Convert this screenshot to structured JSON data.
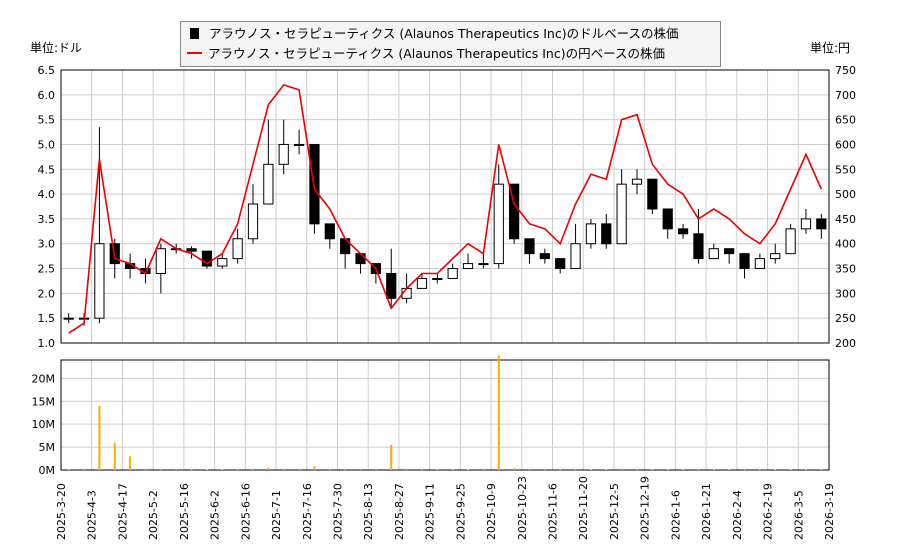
{
  "chart_data": {
    "type": "candlestick+line+bar",
    "legend": {
      "placement": "top-center",
      "items": [
        "アラウノス・セラピューティクス (Alaunos Therapeutics Inc)のドルベースの株価",
        "アラウノス・セラピューティクス (Alaunos Therapeutics Inc)の円ベースの株価"
      ]
    },
    "left_unit": "単位:ドル",
    "right_unit": "単位:円",
    "ylim_left": [
      1.0,
      6.5
    ],
    "yticks_left": [
      "1.0",
      "1.5",
      "2.0",
      "2.5",
      "3.0",
      "3.5",
      "4.0",
      "4.5",
      "5.0",
      "5.5",
      "6.0",
      "6.5"
    ],
    "ylim_right": [
      200,
      750
    ],
    "yticks_right": [
      "200",
      "250",
      "300",
      "350",
      "400",
      "450",
      "500",
      "550",
      "600",
      "650",
      "700",
      "750"
    ],
    "volume_ticks": [
      "0M",
      "5M",
      "10M",
      "15M",
      "20M"
    ],
    "volume_max": 24,
    "xticks": [
      "2025-3-20",
      "2025-4-3",
      "2025-4-17",
      "2025-5-2",
      "2025-5-16",
      "2025-6-2",
      "2025-6-16",
      "2025-7-1",
      "2025-7-16",
      "2025-7-30",
      "2025-8-13",
      "2025-8-27",
      "2025-9-11",
      "2025-9-25",
      "2025-10-9",
      "2025-10-23",
      "2025-11-6",
      "2025-11-20",
      "2025-12-5",
      "2025-12-19",
      "2026-1-6",
      "2026-1-21",
      "2026-2-4",
      "2026-2-19",
      "2026-3-5",
      "2026-3-19"
    ],
    "grid": true,
    "colors": {
      "candle": "#000000",
      "yen_line": "#ee0000",
      "volume": "#ffaa00",
      "grid": "#cccccc"
    },
    "series": {
      "usd_close": [
        1.5,
        1.5,
        3.0,
        2.6,
        2.5,
        2.4,
        2.9,
        2.9,
        2.85,
        2.55,
        2.7,
        3.1,
        3.8,
        4.6,
        5.0,
        5.0,
        3.4,
        3.1,
        2.8,
        2.6,
        2.4,
        1.9,
        2.1,
        2.3,
        2.3,
        2.5,
        2.6,
        2.6,
        4.2,
        3.1,
        2.8,
        2.7,
        2.5,
        3.0,
        3.4,
        3.0,
        4.2,
        4.3,
        3.7,
        3.3,
        3.2,
        2.7,
        2.9,
        2.8,
        2.5,
        2.7,
        2.8,
        3.3,
        3.5,
        3.3
      ],
      "usd_high": [
        1.6,
        1.6,
        5.35,
        3.1,
        2.8,
        2.7,
        3.0,
        3.0,
        2.95,
        2.7,
        2.8,
        3.3,
        4.2,
        5.5,
        5.5,
        5.3,
        4.4,
        3.4,
        3.0,
        2.8,
        2.6,
        2.9,
        2.4,
        2.4,
        2.4,
        2.6,
        2.8,
        2.8,
        4.6,
        3.6,
        3.0,
        2.9,
        2.7,
        3.4,
        3.5,
        3.6,
        4.5,
        4.5,
        4.3,
        3.6,
        3.4,
        3.7,
        3.0,
        2.9,
        2.8,
        2.8,
        3.0,
        3.4,
        3.7,
        3.6
      ],
      "usd_low": [
        1.4,
        1.35,
        1.4,
        2.3,
        2.3,
        2.2,
        2.0,
        2.8,
        2.7,
        2.5,
        2.5,
        2.6,
        3.0,
        3.9,
        4.4,
        4.8,
        3.2,
        2.9,
        2.5,
        2.4,
        2.2,
        1.7,
        1.8,
        2.1,
        2.2,
        2.3,
        2.5,
        2.5,
        2.5,
        3.0,
        2.6,
        2.6,
        2.4,
        2.5,
        2.9,
        2.9,
        3.0,
        4.0,
        3.6,
        3.1,
        3.1,
        2.6,
        2.8,
        2.6,
        2.3,
        2.5,
        2.6,
        2.8,
        3.2,
        3.1
      ],
      "jpy_close": [
        220,
        240,
        570,
        370,
        360,
        340,
        410,
        390,
        380,
        360,
        380,
        440,
        560,
        680,
        720,
        710,
        510,
        470,
        410,
        380,
        350,
        270,
        310,
        340,
        340,
        370,
        400,
        380,
        600,
        480,
        440,
        430,
        400,
        480,
        540,
        530,
        650,
        660,
        560,
        520,
        500,
        450,
        470,
        450,
        420,
        400,
        440,
        510,
        580,
        510
      ],
      "volume_m": [
        0.1,
        0.3,
        14,
        6,
        3,
        0.3,
        0.2,
        0.2,
        0.1,
        0.1,
        0.1,
        0.2,
        0.3,
        0.5,
        0.3,
        0.3,
        0.8,
        0.2,
        0.2,
        0.2,
        0.2,
        5.5,
        0.3,
        0.2,
        0.1,
        0.1,
        0.1,
        0.3,
        25,
        0.4,
        0.2,
        0.2,
        0.1,
        0.2,
        0.1,
        0.1,
        0.3,
        0.2,
        0.1,
        0.1,
        0.1,
        0.2,
        0.1,
        0.1,
        0.1,
        0.1,
        0.1,
        0.1,
        0.1,
        0.1
      ]
    }
  }
}
